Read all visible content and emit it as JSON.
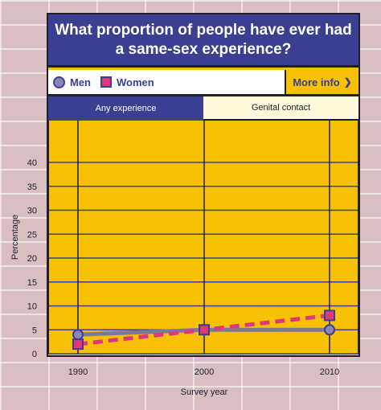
{
  "title": "What proportion of people have ever had a same-sex experience?",
  "legend": {
    "men": "Men",
    "women": "Women"
  },
  "more_info": "More info",
  "tabs": [
    {
      "label": "Any experience",
      "active": true
    },
    {
      "label": "Genital contact",
      "active": false
    }
  ],
  "colors": {
    "navy": "#3b3f91",
    "yellow": "#f7c000",
    "pink": "#e0367a",
    "men_fill": "#8a86b5",
    "men_line": "#7b789f"
  },
  "icons": {
    "more_info": "chevron-down-icon"
  },
  "chart_data": {
    "type": "line",
    "xlabel": "Survey year",
    "ylabel": "Percentage",
    "x": [
      1990,
      2000,
      2010
    ],
    "x_ticks": [
      "1990",
      "2000",
      "2010"
    ],
    "y_ticks": [
      "0",
      "5",
      "10",
      "15",
      "20",
      "25",
      "30",
      "35",
      "40"
    ],
    "ylim": [
      0,
      42
    ],
    "grid": true,
    "series": [
      {
        "name": "Men",
        "values": [
          4,
          5,
          5
        ],
        "style": "solid",
        "marker": "circle"
      },
      {
        "name": "Women",
        "values": [
          2,
          5,
          8
        ],
        "style": "dashed",
        "marker": "square"
      }
    ]
  }
}
